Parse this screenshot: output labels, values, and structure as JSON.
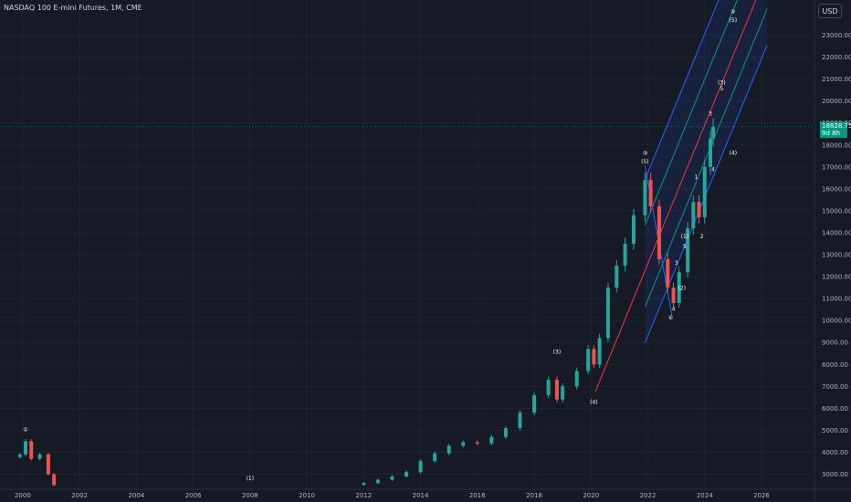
{
  "header": {
    "symbol": "NASDAQ 100 E-mini Futures, 1M, CME"
  },
  "currency": "USD",
  "price_tag": {
    "price": "18828.75",
    "countdown": "9d 8h"
  },
  "colors": {
    "bg": "#161a25",
    "up": "#26a69a",
    "down": "#ef5350",
    "grid": "#1f2330",
    "channel_blue": "#2962ff",
    "channel_green": "#089981",
    "channel_red": "#f23645"
  },
  "chart_data": {
    "type": "candlestick",
    "title": "NASDAQ 100 E-mini Futures, 1M, CME",
    "xlabel": "",
    "ylabel": "",
    "x_ticks": [
      "2000",
      "2002",
      "2004",
      "2006",
      "2008",
      "2010",
      "2012",
      "2014",
      "2016",
      "2018",
      "2020",
      "2022",
      "2024",
      "2026"
    ],
    "y_ticks": [
      3000,
      4000,
      5000,
      6000,
      7000,
      8000,
      9000,
      10000,
      11000,
      12000,
      13000,
      14000,
      15000,
      16000,
      17000,
      18000,
      19000,
      20000,
      21000,
      22000,
      23000
    ],
    "xlim": [
      1999.2,
      2027.8
    ],
    "ylim": [
      2400,
      24600
    ],
    "last_price": 18828.75,
    "series": [
      {
        "x": 1999.9,
        "close": 3900
      },
      {
        "x": 2000.1,
        "close": 4500
      },
      {
        "x": 2000.3,
        "close": 3700
      },
      {
        "x": 2000.6,
        "close": 3900
      },
      {
        "x": 2000.9,
        "close": 3000
      },
      {
        "x": 2001.1,
        "close": 2500
      },
      {
        "x": 2012.0,
        "close": 2600
      },
      {
        "x": 2012.5,
        "close": 2750
      },
      {
        "x": 2013.0,
        "close": 2900
      },
      {
        "x": 2013.5,
        "close": 3100
      },
      {
        "x": 2014.0,
        "close": 3600
      },
      {
        "x": 2014.5,
        "close": 3950
      },
      {
        "x": 2015.0,
        "close": 4300
      },
      {
        "x": 2015.5,
        "close": 4450
      },
      {
        "x": 2016.0,
        "close": 4400
      },
      {
        "x": 2016.5,
        "close": 4700
      },
      {
        "x": 2017.0,
        "close": 5100
      },
      {
        "x": 2017.5,
        "close": 5800
      },
      {
        "x": 2018.0,
        "close": 6600
      },
      {
        "x": 2018.5,
        "close": 7300
      },
      {
        "x": 2018.8,
        "close": 6400
      },
      {
        "x": 2019.0,
        "close": 7000
      },
      {
        "x": 2019.5,
        "close": 7700
      },
      {
        "x": 2019.9,
        "close": 8700
      },
      {
        "x": 2020.1,
        "close": 8000
      },
      {
        "x": 2020.3,
        "close": 9200
      },
      {
        "x": 2020.6,
        "close": 11500
      },
      {
        "x": 2020.9,
        "close": 12500
      },
      {
        "x": 2021.2,
        "close": 13500
      },
      {
        "x": 2021.5,
        "close": 14800
      },
      {
        "x": 2021.9,
        "close": 16400
      },
      {
        "x": 2022.1,
        "close": 15200
      },
      {
        "x": 2022.4,
        "close": 12800
      },
      {
        "x": 2022.7,
        "close": 11500
      },
      {
        "x": 2022.9,
        "close": 10800
      },
      {
        "x": 2023.1,
        "close": 12200
      },
      {
        "x": 2023.4,
        "close": 14200
      },
      {
        "x": 2023.6,
        "close": 15400
      },
      {
        "x": 2023.8,
        "close": 14700
      },
      {
        "x": 2024.0,
        "close": 17000
      },
      {
        "x": 2024.2,
        "close": 18300
      },
      {
        "x": 2024.3,
        "close": 18829
      }
    ],
    "wave_labels": [
      {
        "text": "①",
        "x": 2000.1,
        "y": 4950
      },
      {
        "text": "(1)",
        "x": 2008.0,
        "y": 2730
      },
      {
        "text": "(3)",
        "x": 2018.8,
        "y": 8500
      },
      {
        "text": "(4)",
        "x": 2020.1,
        "y": 6200
      },
      {
        "text": "③",
        "x": 2021.9,
        "y": 17550
      },
      {
        "text": "(5)",
        "x": 2021.9,
        "y": 17150
      },
      {
        "text": "④",
        "x": 2022.8,
        "y": 10050
      },
      {
        "text": "4",
        "x": 2022.9,
        "y": 10450
      },
      {
        "text": "(2)",
        "x": 2023.2,
        "y": 11400
      },
      {
        "text": "3",
        "x": 2023.0,
        "y": 12550
      },
      {
        "text": "5",
        "x": 2023.3,
        "y": 13300
      },
      {
        "text": "(1)",
        "x": 2023.3,
        "y": 13750
      },
      {
        "text": "2",
        "x": 2023.9,
        "y": 13750
      },
      {
        "text": "1",
        "x": 2023.7,
        "y": 16450
      },
      {
        "text": "4",
        "x": 2024.3,
        "y": 16800
      },
      {
        "text": "(4)",
        "x": 2025.0,
        "y": 17550
      },
      {
        "text": "3",
        "x": 2024.2,
        "y": 19350
      },
      {
        "text": "5",
        "x": 2024.6,
        "y": 20480
      },
      {
        "text": "(3)",
        "x": 2024.6,
        "y": 20750
      },
      {
        "text": "(5)",
        "x": 2025.0,
        "y": 23600
      },
      {
        "text": "⑤",
        "x": 2025.0,
        "y": 24000
      }
    ],
    "channel": {
      "start": [
        2020.15,
        6750
      ],
      "end": [
        2024.6,
        20800
      ],
      "lower_offset": -3300,
      "upper_offset": 4150
    }
  }
}
